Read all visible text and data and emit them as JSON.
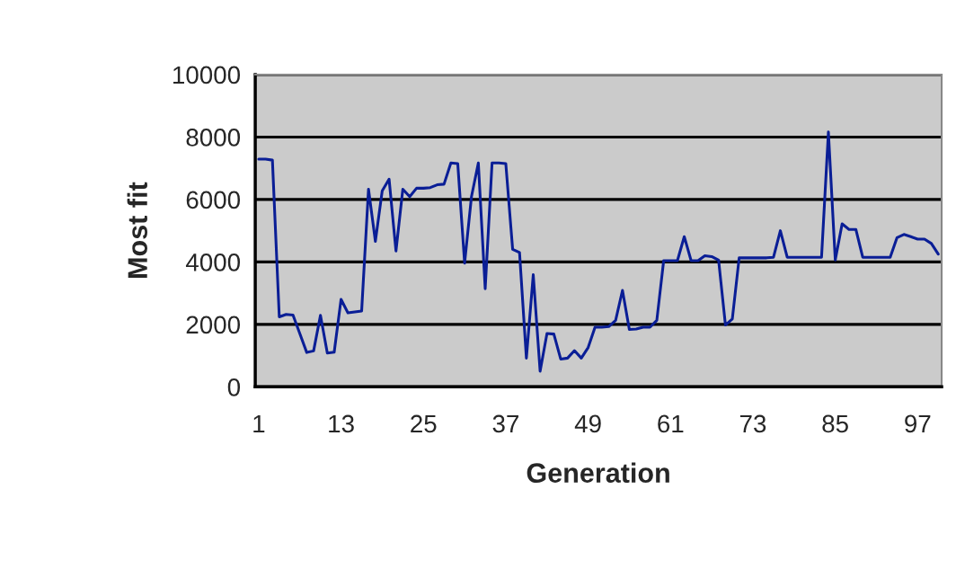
{
  "chart_data": {
    "type": "line",
    "categories": [
      "1",
      null,
      null,
      null,
      null,
      null,
      null,
      null,
      null,
      null,
      null,
      null,
      "13",
      null,
      null,
      null,
      null,
      null,
      null,
      null,
      null,
      null,
      null,
      null,
      "25",
      null,
      null,
      null,
      null,
      null,
      null,
      null,
      null,
      null,
      null,
      null,
      "37",
      null,
      null,
      null,
      null,
      null,
      null,
      null,
      null,
      null,
      null,
      null,
      "49",
      null,
      null,
      null,
      null,
      null,
      null,
      null,
      null,
      null,
      null,
      null,
      "61",
      null,
      null,
      null,
      null,
      null,
      null,
      null,
      null,
      null,
      null,
      null,
      "73",
      null,
      null,
      null,
      null,
      null,
      null,
      null,
      null,
      null,
      null,
      null,
      "85",
      null,
      null,
      null,
      null,
      null,
      null,
      null,
      null,
      null,
      null,
      null,
      "97",
      null,
      null,
      null
    ],
    "series": [
      {
        "color": "#0a1e96",
        "values": [
          7290,
          7290,
          7260,
          2240,
          2320,
          2300,
          1700,
          1100,
          1150,
          2290,
          1080,
          1110,
          2800,
          2370,
          2400,
          2430,
          6330,
          4660,
          6280,
          6650,
          4350,
          6330,
          6090,
          6360,
          6360,
          6380,
          6470,
          6490,
          7170,
          7150,
          3960,
          6090,
          7170,
          3140,
          7170,
          7170,
          7150,
          4400,
          4300,
          920,
          3590,
          500,
          1710,
          1690,
          890,
          920,
          1160,
          920,
          1260,
          1910,
          1910,
          1930,
          2130,
          3090,
          1840,
          1850,
          1910,
          1910,
          2130,
          4040,
          4040,
          4040,
          4810,
          4040,
          4040,
          4200,
          4170,
          4060,
          1980,
          2170,
          4130,
          4130,
          4130,
          4130,
          4130,
          4150,
          5000,
          4150,
          4150,
          4150,
          4150,
          4150,
          4150,
          8160,
          4060,
          5220,
          5040,
          5040,
          4150,
          4150,
          4150,
          4150,
          4150,
          4780,
          4880,
          4810,
          4730,
          4730,
          4590,
          4250
        ]
      }
    ],
    "xlabel": "Generation",
    "ylabel": "Most fit",
    "ylim": [
      0,
      10000
    ],
    "yticks": [
      0,
      2000,
      4000,
      6000,
      8000,
      10000
    ],
    "grid": "y",
    "marker": "none",
    "line_style": "solid",
    "legend": false
  }
}
